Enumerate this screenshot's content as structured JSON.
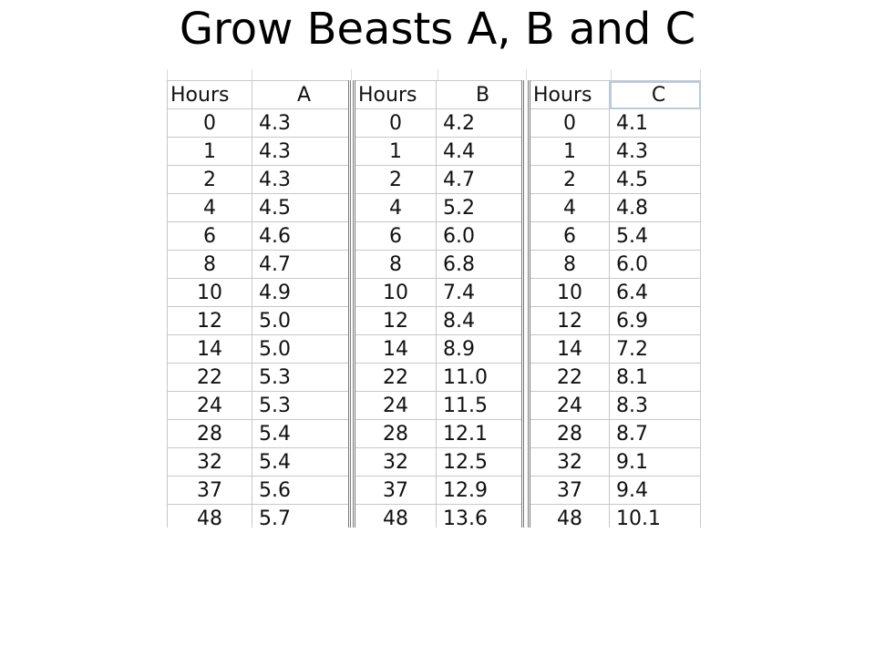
{
  "slide": {
    "title": "Grow Beasts A, B and C"
  },
  "tables": [
    {
      "hours_header": "Hours",
      "value_header": "A",
      "rows": [
        [
          "0",
          "4.3"
        ],
        [
          "1",
          "4.3"
        ],
        [
          "2",
          "4.3"
        ],
        [
          "4",
          "4.5"
        ],
        [
          "6",
          "4.6"
        ],
        [
          "8",
          "4.7"
        ],
        [
          "10",
          "4.9"
        ],
        [
          "12",
          "5.0"
        ],
        [
          "14",
          "5.0"
        ],
        [
          "22",
          "5.3"
        ],
        [
          "24",
          "5.3"
        ],
        [
          "28",
          "5.4"
        ],
        [
          "32",
          "5.4"
        ],
        [
          "37",
          "5.6"
        ],
        [
          "48",
          "5.7"
        ]
      ]
    },
    {
      "hours_header": "Hours",
      "value_header": "B",
      "rows": [
        [
          "0",
          "4.2"
        ],
        [
          "1",
          "4.4"
        ],
        [
          "2",
          "4.7"
        ],
        [
          "4",
          "5.2"
        ],
        [
          "6",
          "6.0"
        ],
        [
          "8",
          "6.8"
        ],
        [
          "10",
          "7.4"
        ],
        [
          "12",
          "8.4"
        ],
        [
          "14",
          "8.9"
        ],
        [
          "22",
          "11.0"
        ],
        [
          "24",
          "11.5"
        ],
        [
          "28",
          "12.1"
        ],
        [
          "32",
          "12.5"
        ],
        [
          "37",
          "12.9"
        ],
        [
          "48",
          "13.6"
        ]
      ]
    },
    {
      "hours_header": "Hours",
      "value_header": "C",
      "rows": [
        [
          "0",
          "4.1"
        ],
        [
          "1",
          "4.3"
        ],
        [
          "2",
          "4.5"
        ],
        [
          "4",
          "4.8"
        ],
        [
          "6",
          "5.4"
        ],
        [
          "8",
          "6.0"
        ],
        [
          "10",
          "6.4"
        ],
        [
          "12",
          "6.9"
        ],
        [
          "14",
          "7.2"
        ],
        [
          "22",
          "8.1"
        ],
        [
          "24",
          "8.3"
        ],
        [
          "28",
          "8.7"
        ],
        [
          "32",
          "9.1"
        ],
        [
          "37",
          "9.4"
        ],
        [
          "48",
          "10.1"
        ]
      ]
    }
  ],
  "colors": {
    "gridline": "#c8c8c8",
    "separator": "#7a7a7a",
    "selection": "#b7cbe3",
    "text": "#111111"
  }
}
